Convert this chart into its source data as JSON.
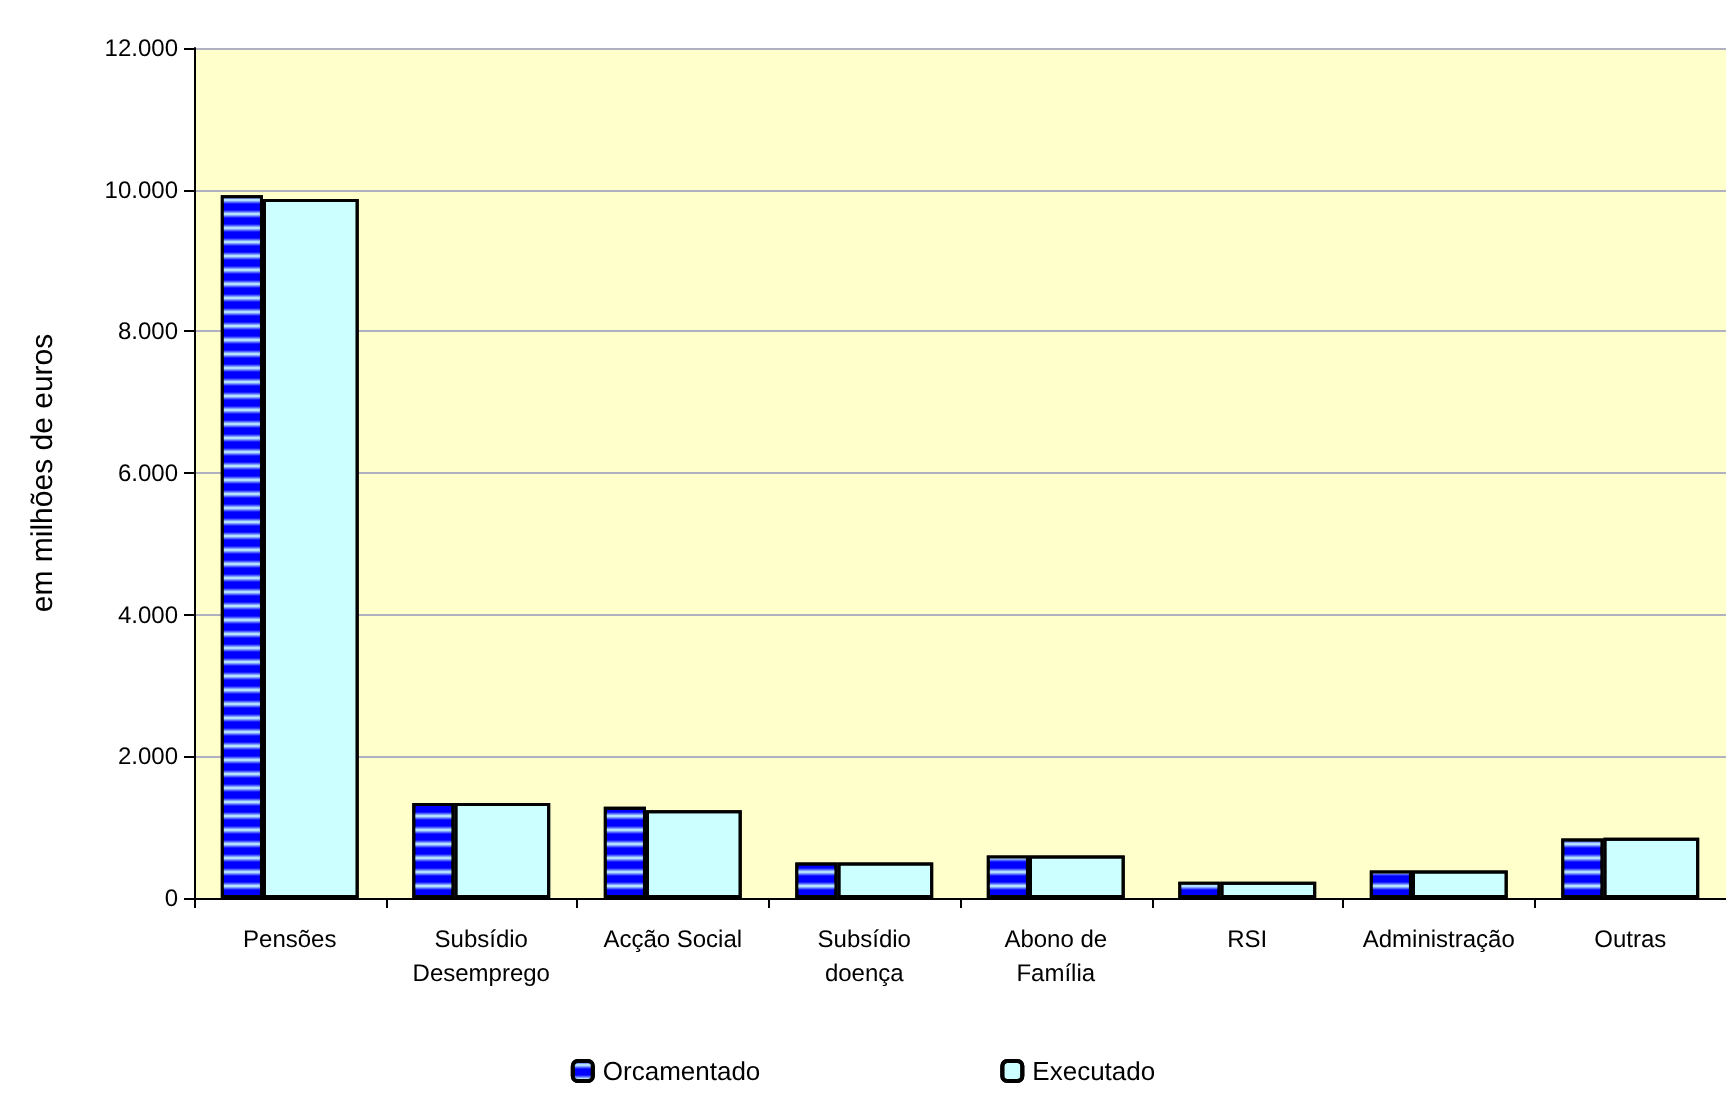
{
  "chart_data": {
    "type": "bar",
    "ylabel": "em milhões de euros",
    "categories": [
      "Pensões",
      "Subsídio\nDesemprego",
      "Acção Social",
      "Subsídio\ndoença",
      "Abono de\nFamília",
      "RSI",
      "Administração",
      "Outras"
    ],
    "series": [
      {
        "name": "Orcamentado",
        "color": "#0000ff",
        "values": [
          9920,
          1340,
          1290,
          500,
          600,
          230,
          390,
          840
        ]
      },
      {
        "name": "Executado",
        "color": "#ccffff",
        "values": [
          9870,
          1340,
          1240,
          500,
          600,
          230,
          390,
          850
        ]
      }
    ],
    "ylim": [
      0,
      12000
    ],
    "yticks": [
      {
        "value": 0,
        "label": "0"
      },
      {
        "value": 2000,
        "label": "2.000"
      },
      {
        "value": 4000,
        "label": "4.000"
      },
      {
        "value": 6000,
        "label": "6.000"
      },
      {
        "value": 8000,
        "label": "8.000"
      },
      {
        "value": 10000,
        "label": "10.000"
      },
      {
        "value": 12000,
        "label": "12.000"
      }
    ],
    "grid": "y",
    "legend": "bottom"
  }
}
